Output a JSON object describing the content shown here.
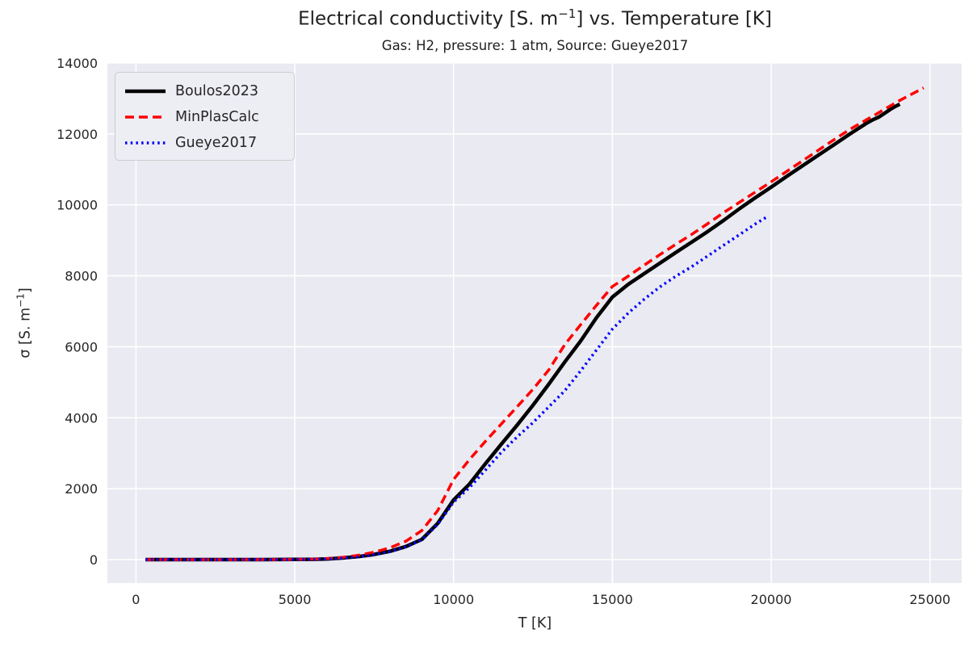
{
  "title": {
    "prefix": "Electrical conductivity [S. m",
    "sup": "−1",
    "suffix": "] vs. Temperature [K]"
  },
  "subtitle": "Gas: H2, pressure: 1 atm, Source: Gueye2017",
  "xlabel": "T [K]",
  "ylabel": {
    "prefix": "σ [S. m",
    "sup": "−1",
    "suffix": "]"
  },
  "colors": {
    "plot_bg": "#eaeaf2",
    "gridline": "#ffffff",
    "text": "#262626",
    "black_series": "#000000",
    "red_series": "#ff0000",
    "blue_series": "#0000ff"
  },
  "legend": {
    "position": "upper left",
    "items": [
      {
        "label": "Boulos2023",
        "color": "#000000",
        "dash": "",
        "width": 4.5
      },
      {
        "label": "MinPlasCalc",
        "color": "#ff0000",
        "dash": "11 6",
        "width": 3.5
      },
      {
        "label": "Gueye2017",
        "color": "#0000ff",
        "dash": "2.5 4.2",
        "width": 3.5
      }
    ]
  },
  "chart_data": {
    "type": "line",
    "title": "Electrical conductivity [S. m⁻¹] vs. Temperature [K]",
    "subtitle": "Gas: H2, pressure: 1 atm, Source: Gueye2017",
    "xlabel": "T [K]",
    "ylabel": "σ [S. m⁻¹]",
    "xlim": [
      -900,
      26000
    ],
    "ylim": [
      -660,
      14000
    ],
    "xticks": [
      0,
      5000,
      10000,
      15000,
      20000,
      25000
    ],
    "yticks": [
      0,
      2000,
      4000,
      6000,
      8000,
      10000,
      12000,
      14000
    ],
    "grid": true,
    "legend_position": "upper left",
    "series": [
      {
        "name": "Boulos2023",
        "color": "#000000",
        "style": "solid",
        "width": 4.5,
        "points": [
          [
            300,
            0
          ],
          [
            1000,
            0
          ],
          [
            2000,
            0
          ],
          [
            3000,
            0
          ],
          [
            4000,
            1
          ],
          [
            5000,
            4
          ],
          [
            5500,
            8
          ],
          [
            6000,
            18
          ],
          [
            6500,
            45
          ],
          [
            7000,
            85
          ],
          [
            7500,
            145
          ],
          [
            8000,
            235
          ],
          [
            8500,
            370
          ],
          [
            9000,
            570
          ],
          [
            9500,
            1020
          ],
          [
            10000,
            1680
          ],
          [
            10500,
            2130
          ],
          [
            11000,
            2700
          ],
          [
            11500,
            3250
          ],
          [
            12000,
            3790
          ],
          [
            12500,
            4350
          ],
          [
            13000,
            4950
          ],
          [
            13500,
            5570
          ],
          [
            14000,
            6160
          ],
          [
            14500,
            6820
          ],
          [
            15000,
            7400
          ],
          [
            15500,
            7760
          ],
          [
            16000,
            8060
          ],
          [
            16500,
            8360
          ],
          [
            17000,
            8660
          ],
          [
            17500,
            8950
          ],
          [
            18000,
            9250
          ],
          [
            18500,
            9560
          ],
          [
            19000,
            9890
          ],
          [
            19500,
            10200
          ],
          [
            20000,
            10500
          ],
          [
            20500,
            10810
          ],
          [
            21000,
            11110
          ],
          [
            21500,
            11410
          ],
          [
            22000,
            11710
          ],
          [
            22500,
            12010
          ],
          [
            23000,
            12300
          ],
          [
            23200,
            12400
          ],
          [
            23400,
            12480
          ],
          [
            23600,
            12600
          ],
          [
            23750,
            12690
          ],
          [
            23900,
            12770
          ],
          [
            24050,
            12840
          ]
        ]
      },
      {
        "name": "MinPlasCalc",
        "color": "#ff0000",
        "style": "dashed",
        "width": 3.5,
        "points": [
          [
            300,
            0
          ],
          [
            1000,
            0
          ],
          [
            2000,
            0
          ],
          [
            3000,
            0
          ],
          [
            4000,
            1
          ],
          [
            5000,
            6
          ],
          [
            5500,
            12
          ],
          [
            6000,
            28
          ],
          [
            6500,
            65
          ],
          [
            7000,
            120
          ],
          [
            7500,
            210
          ],
          [
            8000,
            335
          ],
          [
            8500,
            520
          ],
          [
            9000,
            820
          ],
          [
            9500,
            1380
          ],
          [
            10000,
            2260
          ],
          [
            10500,
            2820
          ],
          [
            11000,
            3330
          ],
          [
            11500,
            3820
          ],
          [
            12000,
            4310
          ],
          [
            12500,
            4800
          ],
          [
            13000,
            5350
          ],
          [
            13500,
            6060
          ],
          [
            14000,
            6620
          ],
          [
            14500,
            7170
          ],
          [
            15000,
            7700
          ],
          [
            15500,
            7990
          ],
          [
            16000,
            8300
          ],
          [
            16500,
            8600
          ],
          [
            17000,
            8890
          ],
          [
            17500,
            9170
          ],
          [
            18000,
            9470
          ],
          [
            18500,
            9780
          ],
          [
            19000,
            10070
          ],
          [
            19500,
            10360
          ],
          [
            20000,
            10650
          ],
          [
            20500,
            10950
          ],
          [
            21000,
            11250
          ],
          [
            21500,
            11550
          ],
          [
            22000,
            11850
          ],
          [
            22500,
            12140
          ],
          [
            23000,
            12400
          ],
          [
            23500,
            12660
          ],
          [
            24000,
            12920
          ],
          [
            24400,
            13110
          ],
          [
            24800,
            13300
          ]
        ]
      },
      {
        "name": "Gueye2017",
        "color": "#0000ff",
        "style": "dotted",
        "width": 3.5,
        "points": [
          [
            300,
            0
          ],
          [
            1000,
            0
          ],
          [
            2000,
            0
          ],
          [
            3000,
            0
          ],
          [
            4000,
            1
          ],
          [
            5000,
            4
          ],
          [
            5500,
            8
          ],
          [
            6000,
            17
          ],
          [
            6500,
            42
          ],
          [
            7000,
            80
          ],
          [
            7500,
            140
          ],
          [
            8000,
            228
          ],
          [
            8500,
            360
          ],
          [
            9000,
            555
          ],
          [
            9500,
            990
          ],
          [
            10000,
            1620
          ],
          [
            10500,
            2030
          ],
          [
            11000,
            2520
          ],
          [
            11500,
            3020
          ],
          [
            12000,
            3460
          ],
          [
            12500,
            3860
          ],
          [
            13000,
            4310
          ],
          [
            13500,
            4760
          ],
          [
            14000,
            5320
          ],
          [
            14500,
            5910
          ],
          [
            15000,
            6500
          ],
          [
            15500,
            6950
          ],
          [
            16000,
            7340
          ],
          [
            16500,
            7690
          ],
          [
            17000,
            7990
          ],
          [
            17500,
            8260
          ],
          [
            18000,
            8560
          ],
          [
            18500,
            8860
          ],
          [
            19000,
            9160
          ],
          [
            19500,
            9460
          ],
          [
            19900,
            9680
          ]
        ]
      }
    ]
  }
}
